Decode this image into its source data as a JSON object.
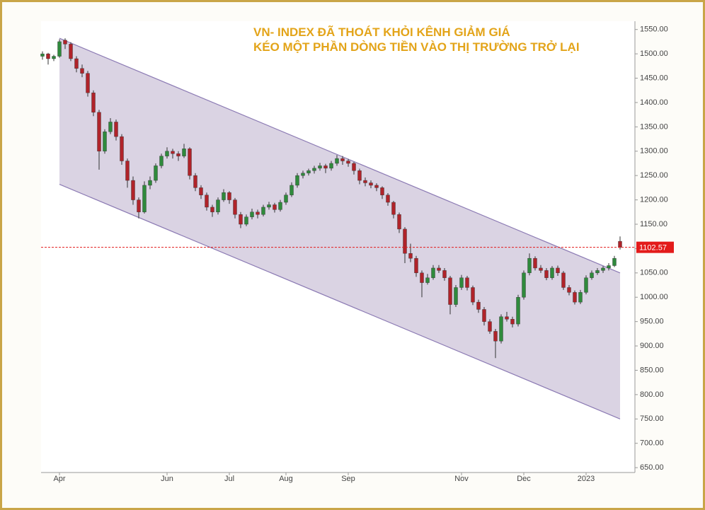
{
  "chart_data": {
    "type": "candlestick",
    "title_lines": [
      "VN- INDEX ĐÃ THOÁT KHỎI KÊNH GIẢM GIÁ",
      "KÉO MỘT PHẦN DÒNG TIỀN VÀO THỊ TRƯỜNG TRỞ LẠI"
    ],
    "categories": [
      null,
      null,
      null,
      "Apr",
      null,
      null,
      null,
      null,
      null,
      null,
      null,
      null,
      null,
      null,
      null,
      null,
      null,
      null,
      null,
      null,
      null,
      null,
      "Jun",
      null,
      null,
      null,
      null,
      null,
      null,
      null,
      null,
      null,
      null,
      "Jul",
      null,
      null,
      null,
      null,
      null,
      null,
      null,
      null,
      null,
      "Aug",
      null,
      null,
      null,
      null,
      null,
      null,
      null,
      null,
      null,
      null,
      "Sep",
      null,
      null,
      null,
      null,
      null,
      null,
      null,
      null,
      null,
      null,
      null,
      null,
      null,
      null,
      null,
      null,
      null,
      null,
      null,
      "Nov",
      null,
      null,
      null,
      null,
      null,
      null,
      null,
      null,
      null,
      null,
      "Dec",
      null,
      null,
      null,
      null,
      null,
      null,
      null,
      null,
      null,
      null,
      "2023",
      null,
      null,
      null,
      null,
      null,
      null
    ],
    "candles": [
      [
        1495,
        1505,
        1488,
        1500
      ],
      [
        1500,
        1502,
        1478,
        1490
      ],
      [
        1490,
        1498,
        1485,
        1495
      ],
      [
        1495,
        1530,
        1492,
        1525
      ],
      [
        1528,
        1532,
        1510,
        1520
      ],
      [
        1520,
        1524,
        1485,
        1490
      ],
      [
        1490,
        1495,
        1462,
        1470
      ],
      [
        1470,
        1478,
        1452,
        1460
      ],
      [
        1460,
        1465,
        1412,
        1420
      ],
      [
        1420,
        1425,
        1372,
        1380
      ],
      [
        1380,
        1385,
        1262,
        1300
      ],
      [
        1300,
        1345,
        1295,
        1340
      ],
      [
        1340,
        1368,
        1335,
        1360
      ],
      [
        1360,
        1365,
        1322,
        1330
      ],
      [
        1330,
        1335,
        1272,
        1280
      ],
      [
        1280,
        1285,
        1225,
        1240
      ],
      [
        1240,
        1248,
        1190,
        1200
      ],
      [
        1200,
        1205,
        1162,
        1175
      ],
      [
        1175,
        1238,
        1172,
        1230
      ],
      [
        1230,
        1248,
        1222,
        1240
      ],
      [
        1240,
        1275,
        1235,
        1270
      ],
      [
        1270,
        1295,
        1265,
        1290
      ],
      [
        1290,
        1308,
        1285,
        1300
      ],
      [
        1300,
        1305,
        1285,
        1295
      ],
      [
        1295,
        1300,
        1280,
        1290
      ],
      [
        1290,
        1315,
        1286,
        1305
      ],
      [
        1305,
        1308,
        1242,
        1250
      ],
      [
        1250,
        1255,
        1218,
        1225
      ],
      [
        1225,
        1230,
        1202,
        1210
      ],
      [
        1210,
        1215,
        1178,
        1185
      ],
      [
        1185,
        1190,
        1165,
        1175
      ],
      [
        1175,
        1205,
        1170,
        1200
      ],
      [
        1200,
        1222,
        1196,
        1215
      ],
      [
        1215,
        1218,
        1192,
        1200
      ],
      [
        1200,
        1204,
        1162,
        1170
      ],
      [
        1170,
        1175,
        1142,
        1150
      ],
      [
        1150,
        1170,
        1146,
        1165
      ],
      [
        1165,
        1182,
        1160,
        1175
      ],
      [
        1175,
        1180,
        1162,
        1170
      ],
      [
        1170,
        1190,
        1166,
        1185
      ],
      [
        1185,
        1196,
        1180,
        1190
      ],
      [
        1190,
        1194,
        1174,
        1180
      ],
      [
        1180,
        1200,
        1176,
        1195
      ],
      [
        1195,
        1215,
        1190,
        1210
      ],
      [
        1210,
        1236,
        1206,
        1230
      ],
      [
        1230,
        1255,
        1225,
        1250
      ],
      [
        1250,
        1260,
        1244,
        1255
      ],
      [
        1255,
        1264,
        1250,
        1260
      ],
      [
        1260,
        1270,
        1254,
        1265
      ],
      [
        1265,
        1276,
        1260,
        1270
      ],
      [
        1270,
        1274,
        1255,
        1265
      ],
      [
        1265,
        1280,
        1260,
        1275
      ],
      [
        1275,
        1292,
        1270,
        1285
      ],
      [
        1285,
        1290,
        1272,
        1280
      ],
      [
        1280,
        1284,
        1268,
        1275
      ],
      [
        1275,
        1278,
        1252,
        1260
      ],
      [
        1260,
        1264,
        1232,
        1240
      ],
      [
        1240,
        1246,
        1228,
        1235
      ],
      [
        1235,
        1240,
        1224,
        1230
      ],
      [
        1230,
        1234,
        1218,
        1225
      ],
      [
        1225,
        1228,
        1202,
        1210
      ],
      [
        1210,
        1214,
        1188,
        1195
      ],
      [
        1195,
        1198,
        1162,
        1170
      ],
      [
        1170,
        1174,
        1132,
        1140
      ],
      [
        1140,
        1144,
        1070,
        1090
      ],
      [
        1090,
        1110,
        1072,
        1080
      ],
      [
        1080,
        1085,
        1042,
        1050
      ],
      [
        1050,
        1055,
        1000,
        1030
      ],
      [
        1030,
        1048,
        1026,
        1040
      ],
      [
        1040,
        1066,
        1036,
        1060
      ],
      [
        1060,
        1066,
        1050,
        1055
      ],
      [
        1055,
        1060,
        1034,
        1040
      ],
      [
        1040,
        1044,
        965,
        985
      ],
      [
        985,
        1025,
        980,
        1020
      ],
      [
        1020,
        1046,
        1015,
        1040
      ],
      [
        1040,
        1044,
        1014,
        1020
      ],
      [
        1020,
        1024,
        984,
        990
      ],
      [
        990,
        995,
        968,
        975
      ],
      [
        975,
        980,
        942,
        950
      ],
      [
        950,
        955,
        925,
        930
      ],
      [
        930,
        935,
        875,
        910
      ],
      [
        910,
        965,
        905,
        960
      ],
      [
        960,
        970,
        950,
        955
      ],
      [
        955,
        960,
        938,
        945
      ],
      [
        945,
        1005,
        940,
        1000
      ],
      [
        1000,
        1055,
        995,
        1050
      ],
      [
        1050,
        1090,
        1045,
        1080
      ],
      [
        1080,
        1084,
        1055,
        1060
      ],
      [
        1060,
        1066,
        1050,
        1055
      ],
      [
        1055,
        1060,
        1035,
        1040
      ],
      [
        1040,
        1064,
        1036,
        1060
      ],
      [
        1060,
        1065,
        1044,
        1050
      ],
      [
        1050,
        1054,
        1015,
        1020
      ],
      [
        1020,
        1025,
        1004,
        1010
      ],
      [
        1010,
        1014,
        985,
        990
      ],
      [
        990,
        1015,
        986,
        1010
      ],
      [
        1010,
        1045,
        1006,
        1040
      ],
      [
        1040,
        1055,
        1036,
        1050
      ],
      [
        1050,
        1060,
        1046,
        1055
      ],
      [
        1055,
        1064,
        1050,
        1060
      ],
      [
        1060,
        1070,
        1055,
        1065
      ],
      [
        1065,
        1085,
        1062,
        1080
      ],
      [
        1115,
        1125,
        1098,
        1102.57
      ]
    ],
    "up_color": "#2f8a3c",
    "down_color": "#b0232a",
    "channel": {
      "color": "#d6cee0",
      "line_color": "#8c7bb4",
      "upper": [
        1532,
        1050
      ],
      "lower": [
        1232,
        750
      ]
    },
    "last_price": 1102.57,
    "last_price_color": "#e31b1b",
    "ylim": [
      640,
      1567
    ],
    "yticks": [
      {
        "value": 650,
        "label": "650.00"
      },
      {
        "value": 700,
        "label": "700.00"
      },
      {
        "value": 750,
        "label": "750.00"
      },
      {
        "value": 800,
        "label": "800.00"
      },
      {
        "value": 850,
        "label": "850.00"
      },
      {
        "value": 900,
        "label": "900.00"
      },
      {
        "value": 950,
        "label": "950.00"
      },
      {
        "value": 1000,
        "label": "1000.00"
      },
      {
        "value": 1050,
        "label": "1050.00"
      },
      {
        "value": 1100,
        "label": "1100.00"
      },
      {
        "value": 1150,
        "label": "1150.00"
      },
      {
        "value": 1200,
        "label": "1200.00"
      },
      {
        "value": 1250,
        "label": "1250.00"
      },
      {
        "value": 1300,
        "label": "1300.00"
      },
      {
        "value": 1350,
        "label": "1350.00"
      },
      {
        "value": 1400,
        "label": "1400.00"
      },
      {
        "value": 1450,
        "label": "1450.00"
      },
      {
        "value": 1500,
        "label": "1500.00"
      },
      {
        "value": 1550,
        "label": "1550.00"
      }
    ],
    "y_axis_side": "right"
  }
}
